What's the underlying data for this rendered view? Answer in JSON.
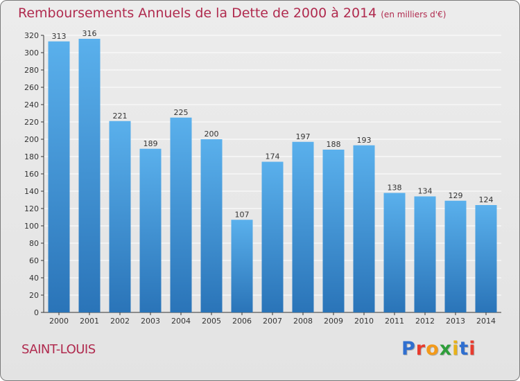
{
  "title": "Remboursements Annuels de la Dette de 2000 à 2014",
  "unit": "(en milliers d'€)",
  "city": "SAINT-LOUIS",
  "logo": {
    "text": "Proxiti",
    "letter_colors": [
      "#2f6fd0",
      "#e83b2e",
      "#f39a1a",
      "#2e9e3a",
      "#e8b21a",
      "#2f6fd0",
      "#e83b2e"
    ]
  },
  "colors": {
    "bar_top": "#5ab0ec",
    "bar_bottom": "#2a74b8",
    "title": "#b02a4e",
    "axis": "#333333",
    "grid": "#ffffff"
  },
  "chart_data": {
    "type": "bar",
    "categories": [
      "2000",
      "2001",
      "2002",
      "2003",
      "2004",
      "2005",
      "2006",
      "2007",
      "2008",
      "2009",
      "2010",
      "2011",
      "2012",
      "2013",
      "2014"
    ],
    "values": [
      313,
      316,
      221,
      189,
      225,
      200,
      107,
      174,
      197,
      188,
      193,
      138,
      134,
      129,
      124
    ],
    "ylim": [
      0,
      320
    ],
    "yticks": [
      0,
      20,
      40,
      60,
      80,
      100,
      120,
      140,
      160,
      180,
      200,
      220,
      240,
      260,
      280,
      300,
      320
    ],
    "grid": true,
    "data_labels": true
  }
}
